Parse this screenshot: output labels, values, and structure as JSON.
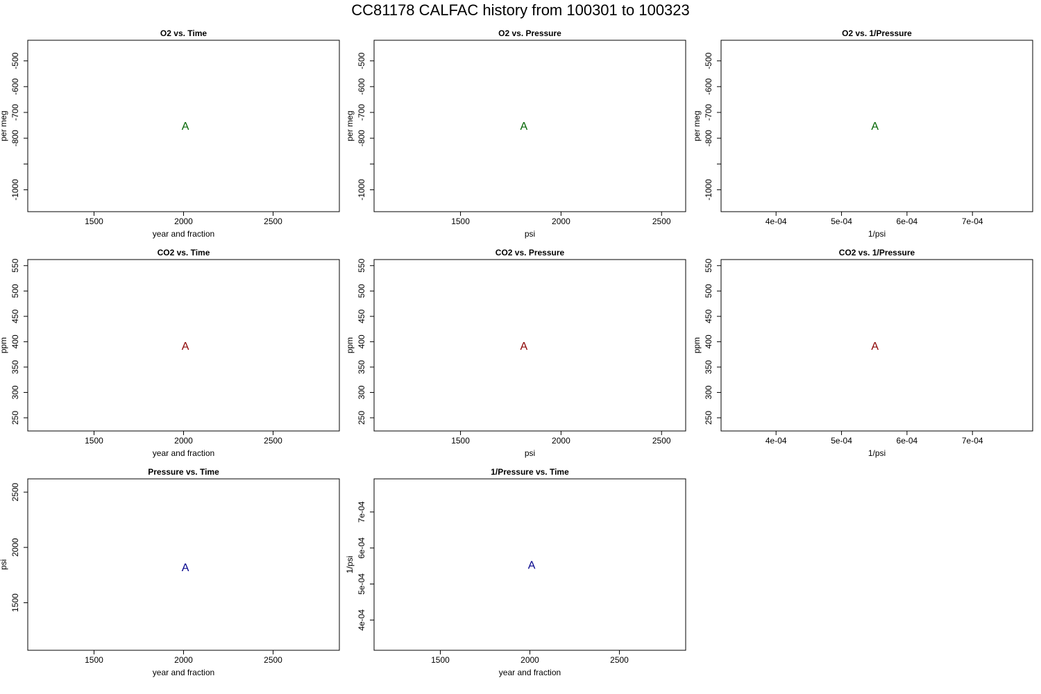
{
  "figure": {
    "title": "CC81178   CALFAC history from  100301  to  100323"
  },
  "colors": {
    "o2": "#006400",
    "co2": "#8b0000",
    "pressure": "#00008b",
    "axis": "#000000"
  },
  "chart_data": [
    {
      "type": "scatter",
      "title": "O2 vs. Time",
      "xlabel": "year and fraction",
      "ylabel": "per meg",
      "xticks": [
        1500,
        2000,
        2500
      ],
      "xtick_labels": [
        "1500",
        "2000",
        "2500"
      ],
      "xlim": [
        1130,
        2870
      ],
      "yticks": [
        -500,
        -600,
        -700,
        -800,
        -900,
        -1000
      ],
      "ytick_labels": [
        "-500",
        "-600",
        "-700",
        "-800",
        "",
        "-1000"
      ],
      "ylim": [
        -1085,
        -420
      ],
      "points": [
        {
          "x": 2010,
          "y": -755,
          "label": "A"
        }
      ],
      "color_key": "o2"
    },
    {
      "type": "scatter",
      "title": "O2 vs. Pressure",
      "xlabel": "psi",
      "ylabel": "per meg",
      "xticks": [
        1500,
        2000,
        2500
      ],
      "xtick_labels": [
        "1500",
        "2000",
        "2500"
      ],
      "xlim": [
        1070,
        2620
      ],
      "yticks": [
        -500,
        -600,
        -700,
        -800,
        -900,
        -1000
      ],
      "ytick_labels": [
        "-500",
        "-600",
        "-700",
        "-800",
        "",
        "-1000"
      ],
      "ylim": [
        -1085,
        -420
      ],
      "points": [
        {
          "x": 1815,
          "y": -755,
          "label": "A"
        }
      ],
      "color_key": "o2"
    },
    {
      "type": "scatter",
      "title": "O2 vs. 1/Pressure",
      "xlabel": "1/psi",
      "ylabel": "per meg",
      "xticks": [
        0.0004,
        0.0005,
        0.0006,
        0.0007
      ],
      "xtick_labels": [
        "4e-04",
        "5e-04",
        "6e-04",
        "7e-04"
      ],
      "xlim": [
        0.000316,
        0.000792
      ],
      "yticks": [
        -500,
        -600,
        -700,
        -800,
        -900,
        -1000
      ],
      "ytick_labels": [
        "-500",
        "-600",
        "-700",
        "-800",
        "",
        "-1000"
      ],
      "ylim": [
        -1085,
        -420
      ],
      "points": [
        {
          "x": 0.000551,
          "y": -755,
          "label": "A"
        }
      ],
      "color_key": "o2"
    },
    {
      "type": "scatter",
      "title": "CO2 vs. Time",
      "xlabel": "year and fraction",
      "ylabel": "ppm",
      "xticks": [
        1500,
        2000,
        2500
      ],
      "xtick_labels": [
        "1500",
        "2000",
        "2500"
      ],
      "xlim": [
        1130,
        2870
      ],
      "yticks": [
        250,
        300,
        350,
        400,
        450,
        500,
        550
      ],
      "ytick_labels": [
        "250",
        "300",
        "350",
        "400",
        "450",
        "500",
        "550"
      ],
      "ylim": [
        224,
        562
      ],
      "points": [
        {
          "x": 2010,
          "y": 390,
          "label": "A"
        }
      ],
      "color_key": "co2"
    },
    {
      "type": "scatter",
      "title": "CO2 vs. Pressure",
      "xlabel": "psi",
      "ylabel": "ppm",
      "xticks": [
        1500,
        2000,
        2500
      ],
      "xtick_labels": [
        "1500",
        "2000",
        "2500"
      ],
      "xlim": [
        1070,
        2620
      ],
      "yticks": [
        250,
        300,
        350,
        400,
        450,
        500,
        550
      ],
      "ytick_labels": [
        "250",
        "300",
        "350",
        "400",
        "450",
        "500",
        "550"
      ],
      "ylim": [
        224,
        562
      ],
      "points": [
        {
          "x": 1815,
          "y": 390,
          "label": "A"
        }
      ],
      "color_key": "co2"
    },
    {
      "type": "scatter",
      "title": "CO2 vs. 1/Pressure",
      "xlabel": "1/psi",
      "ylabel": "ppm",
      "xticks": [
        0.0004,
        0.0005,
        0.0006,
        0.0007
      ],
      "xtick_labels": [
        "4e-04",
        "5e-04",
        "6e-04",
        "7e-04"
      ],
      "xlim": [
        0.000316,
        0.000792
      ],
      "yticks": [
        250,
        300,
        350,
        400,
        450,
        500,
        550
      ],
      "ytick_labels": [
        "250",
        "300",
        "350",
        "400",
        "450",
        "500",
        "550"
      ],
      "ylim": [
        224,
        562
      ],
      "points": [
        {
          "x": 0.000551,
          "y": 390,
          "label": "A"
        }
      ],
      "color_key": "co2"
    },
    {
      "type": "scatter",
      "title": "Pressure vs. Time",
      "xlabel": "year and fraction",
      "ylabel": "psi",
      "xticks": [
        1500,
        2000,
        2500
      ],
      "xtick_labels": [
        "1500",
        "2000",
        "2500"
      ],
      "xlim": [
        1130,
        2870
      ],
      "yticks": [
        1500,
        2000,
        2500
      ],
      "ytick_labels": [
        "1500",
        "2000",
        "2500"
      ],
      "ylim": [
        1070,
        2620
      ],
      "points": [
        {
          "x": 2010,
          "y": 1815,
          "label": "A"
        }
      ],
      "color_key": "pressure"
    },
    {
      "type": "scatter",
      "title": "1/Pressure vs. Time",
      "xlabel": "year and fraction",
      "ylabel": "1/psi",
      "xticks": [
        1500,
        2000,
        2500
      ],
      "xtick_labels": [
        "1500",
        "2000",
        "2500"
      ],
      "xlim": [
        1130,
        2870
      ],
      "yticks": [
        0.0004,
        0.0005,
        0.0006,
        0.0007
      ],
      "ytick_labels": [
        "4e-04",
        "5e-04",
        "6e-04",
        "7e-04"
      ],
      "ylim": [
        0.000316,
        0.000792
      ],
      "points": [
        {
          "x": 2010,
          "y": 0.000551,
          "label": "A"
        }
      ],
      "color_key": "pressure"
    }
  ]
}
